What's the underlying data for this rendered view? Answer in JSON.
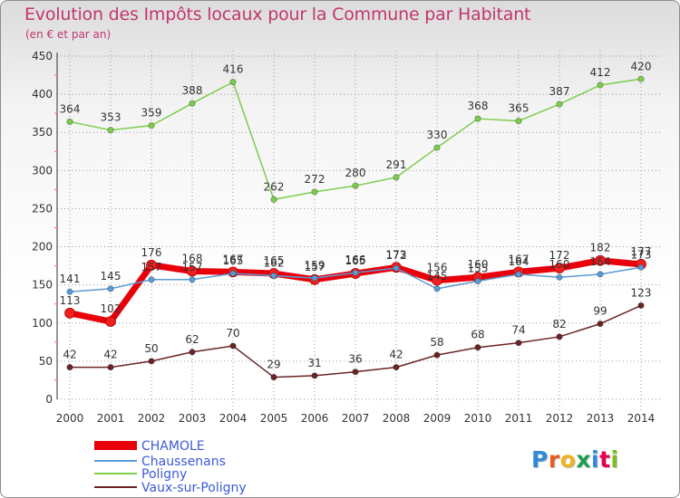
{
  "header": {
    "title": "Evolution des Impôts locaux pour la Commune par Habitant",
    "subtitle": "(en € et par an)"
  },
  "logo": {
    "text": "Proxiti"
  },
  "colors": {
    "title": "#c2366f",
    "legend_text": "#3b5bd6",
    "grid_tick": "#ff6a6a"
  },
  "chart_data": {
    "type": "line",
    "title": "Evolution des Impôts locaux pour la Commune par Habitant",
    "subtitle": "(en € et par an)",
    "xlabel": "",
    "ylabel": "",
    "x": [
      2000,
      2001,
      2002,
      2003,
      2004,
      2005,
      2006,
      2007,
      2008,
      2009,
      2010,
      2011,
      2012,
      2013,
      2014
    ],
    "ylim": [
      0,
      450
    ],
    "yticks": [
      0,
      50,
      100,
      150,
      200,
      250,
      300,
      350,
      400,
      450
    ],
    "legend_position": "bottom-left",
    "series": [
      {
        "name": "CHAMOLE",
        "color": "#e8000b",
        "values": [
          113,
          102,
          176,
          168,
          167,
          165,
          157,
          165,
          173,
          156,
          160,
          167,
          172,
          182,
          177
        ]
      },
      {
        "name": "Chaussenans",
        "color": "#5b9bd5",
        "values": [
          141,
          145,
          157,
          157,
          165,
          162,
          159,
          166,
          172,
          145,
          155,
          164,
          160,
          164,
          173
        ]
      },
      {
        "name": "Poligny",
        "color": "#7ccd4c",
        "values": [
          364,
          353,
          359,
          388,
          416,
          262,
          272,
          280,
          291,
          330,
          368,
          365,
          387,
          412,
          420
        ]
      },
      {
        "name": "Vaux-sur-Poligny",
        "color": "#6b2424",
        "values": [
          42,
          42,
          50,
          62,
          70,
          29,
          31,
          36,
          42,
          58,
          68,
          74,
          82,
          99,
          123
        ]
      }
    ]
  }
}
